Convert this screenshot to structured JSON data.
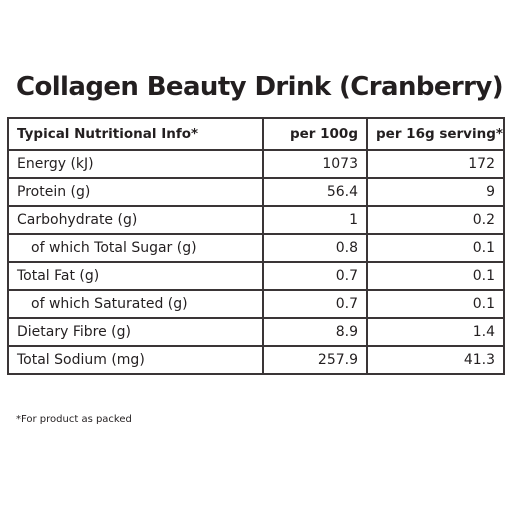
{
  "title": "Collagen Beauty Drink (Cranberry)",
  "table": {
    "headers": [
      "Typical Nutritional Info*",
      "per 100g",
      "per 16g serving*"
    ],
    "rows": [
      {
        "label": "Energy (kJ)",
        "per100": "1073",
        "serving": "172",
        "indent": false
      },
      {
        "label": "Protein (g)",
        "per100": "56.4",
        "serving": "9",
        "indent": false
      },
      {
        "label": "Carbohydrate (g)",
        "per100": "1",
        "serving": "0.2",
        "indent": false
      },
      {
        "label": "of which Total Sugar (g)",
        "per100": "0.8",
        "serving": "0.1",
        "indent": true
      },
      {
        "label": "Total Fat (g)",
        "per100": "0.7",
        "serving": "0.1",
        "indent": false
      },
      {
        "label": "of which Saturated (g)",
        "per100": "0.7",
        "serving": "0.1",
        "indent": true
      },
      {
        "label": "Dietary Fibre (g)",
        "per100": "8.9",
        "serving": "1.4",
        "indent": false
      },
      {
        "label": "Total Sodium (mg)",
        "per100": "257.9",
        "serving": "41.3",
        "indent": false
      }
    ]
  },
  "footnote": "*For product as packed"
}
